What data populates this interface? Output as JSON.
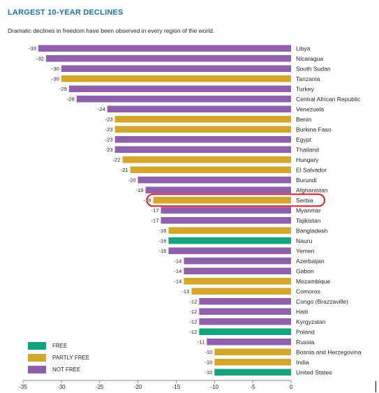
{
  "header": {
    "title": "LARGEST 10-YEAR DECLINES",
    "subtitle": "Dramatic declines in freedom have been observed in every region of the world."
  },
  "colors": {
    "free": "#13a37f",
    "partly_free": "#d4a62a",
    "not_free": "#9060ad",
    "highlight": "#d8202a",
    "title": "#1e6fa6"
  },
  "legend": {
    "items": [
      {
        "label": "FREE",
        "status": "free"
      },
      {
        "label": "PARTLY FREE",
        "status": "partly_free"
      },
      {
        "label": "NOT FREE",
        "status": "not_free"
      }
    ]
  },
  "chart_data": {
    "type": "bar",
    "orientation": "horizontal",
    "title": "LARGEST 10-YEAR DECLINES",
    "subtitle": "Dramatic declines in freedom have been observed in every region of the world.",
    "xlim": [
      -35,
      0
    ],
    "xticks": [
      -35,
      -30,
      -25,
      -20,
      -15,
      -10,
      -5,
      0
    ],
    "grid": false,
    "legend_position": "bottom-left",
    "highlighted_category": "Serbia",
    "categories": [
      "Libya",
      "Nicaragua",
      "South Sudan",
      "Tanzania",
      "Turkey",
      "Central African Republic",
      "Venezuela",
      "Benin",
      "Burkina Faso",
      "Egypt",
      "Thailand",
      "Hungary",
      "El Salvador",
      "Burundi",
      "Afghanistan",
      "Serbia",
      "Myanmar",
      "Tajikistan",
      "Bangladesh",
      "Nauru",
      "Yemen",
      "Azerbaijan",
      "Gabon",
      "Mozambique",
      "Comoros",
      "Congo (Brazzaville)",
      "Haiti",
      "Kyrgyzstan",
      "Poland",
      "Russia",
      "Bosnia and Herzegovina",
      "India",
      "United States"
    ],
    "values": [
      -33,
      -32,
      -30,
      -30,
      -29,
      -28,
      -24,
      -23,
      -23,
      -23,
      -23,
      -22,
      -21,
      -20,
      -19,
      -18,
      -17,
      -17,
      -16,
      -16,
      -16,
      -14,
      -14,
      -14,
      -13,
      -12,
      -12,
      -12,
      -12,
      -11,
      -10,
      -10,
      -10
    ],
    "status": [
      "not_free",
      "not_free",
      "not_free",
      "partly_free",
      "not_free",
      "not_free",
      "not_free",
      "partly_free",
      "partly_free",
      "not_free",
      "not_free",
      "partly_free",
      "partly_free",
      "not_free",
      "not_free",
      "partly_free",
      "not_free",
      "not_free",
      "partly_free",
      "free",
      "not_free",
      "not_free",
      "not_free",
      "partly_free",
      "partly_free",
      "not_free",
      "not_free",
      "not_free",
      "free",
      "not_free",
      "partly_free",
      "partly_free",
      "free"
    ]
  }
}
